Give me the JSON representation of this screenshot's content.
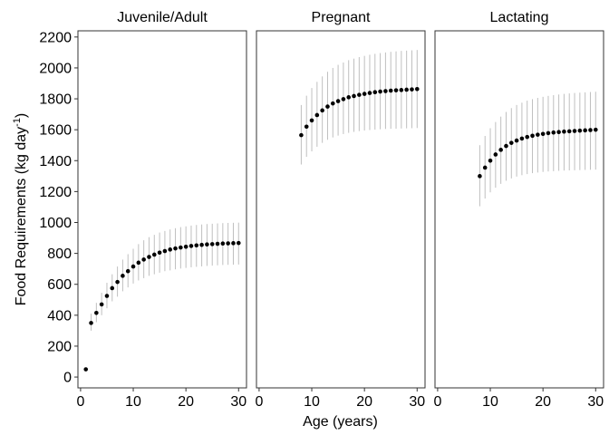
{
  "chart_data": {
    "type": "scatter",
    "xlabel": "Age (years)",
    "ylabel": "Food Requirements (kg day",
    "ylabel_sup": "-1",
    "ylabel_close": ")",
    "ylim": [
      -70,
      2240
    ],
    "xlim": [
      -0.5,
      31.5
    ],
    "y_ticks": [
      0,
      200,
      400,
      600,
      800,
      1000,
      1200,
      1400,
      1600,
      1800,
      2000,
      2200
    ],
    "x_ticks": [
      0,
      10,
      20,
      30
    ],
    "grid": false,
    "colors": {
      "point": "#000000",
      "error_bar": "#bfbfbf",
      "frame": "#333333"
    },
    "panels": [
      {
        "title": "Juvenile/Adult",
        "x": [
          1,
          2,
          3,
          4,
          5,
          6,
          7,
          8,
          9,
          10,
          11,
          12,
          13,
          14,
          15,
          16,
          17,
          18,
          19,
          20,
          21,
          22,
          23,
          24,
          25,
          26,
          27,
          28,
          29,
          30
        ],
        "y": [
          50,
          350,
          415,
          470,
          525,
          575,
          615,
          655,
          685,
          715,
          740,
          760,
          777,
          792,
          805,
          815,
          825,
          832,
          838,
          843,
          848,
          852,
          855,
          858,
          860,
          862,
          864,
          865,
          866,
          867
        ],
        "ymin": [
          50,
          300,
          355,
          400,
          445,
          490,
          520,
          555,
          580,
          605,
          625,
          640,
          655,
          665,
          675,
          685,
          690,
          697,
          702,
          706,
          710,
          713,
          716,
          719,
          721,
          723,
          725,
          726,
          727,
          728
        ],
        "ymax": [
          50,
          410,
          480,
          545,
          610,
          665,
          715,
          760,
          795,
          830,
          860,
          885,
          905,
          920,
          935,
          945,
          955,
          963,
          970,
          975,
          980,
          984,
          987,
          990,
          992,
          994,
          996,
          997,
          998,
          999
        ]
      },
      {
        "title": "Pregnant",
        "x": [
          8,
          9,
          10,
          11,
          12,
          13,
          14,
          15,
          16,
          17,
          18,
          19,
          20,
          21,
          22,
          23,
          24,
          25,
          26,
          27,
          28,
          29,
          30
        ],
        "y": [
          1565,
          1620,
          1660,
          1695,
          1725,
          1750,
          1770,
          1785,
          1798,
          1810,
          1818,
          1826,
          1832,
          1838,
          1843,
          1847,
          1850,
          1853,
          1855,
          1857,
          1859,
          1861,
          1863
        ],
        "ymin": [
          1375,
          1425,
          1460,
          1490,
          1515,
          1535,
          1550,
          1562,
          1572,
          1580,
          1586,
          1591,
          1595,
          1598,
          1601,
          1603,
          1605,
          1606,
          1607,
          1608,
          1609,
          1610,
          1611
        ],
        "ymax": [
          1760,
          1820,
          1870,
          1910,
          1945,
          1975,
          2000,
          2020,
          2035,
          2050,
          2060,
          2070,
          2078,
          2085,
          2091,
          2096,
          2100,
          2104,
          2107,
          2110,
          2112,
          2114,
          2116
        ]
      },
      {
        "title": "Lactating",
        "x": [
          8,
          9,
          10,
          11,
          12,
          13,
          14,
          15,
          16,
          17,
          18,
          19,
          20,
          21,
          22,
          23,
          24,
          25,
          26,
          27,
          28,
          29,
          30
        ],
        "y": [
          1300,
          1355,
          1400,
          1440,
          1470,
          1495,
          1515,
          1530,
          1543,
          1553,
          1561,
          1568,
          1573,
          1578,
          1582,
          1585,
          1588,
          1590,
          1592,
          1594,
          1596,
          1598,
          1600
        ],
        "ymin": [
          1105,
          1155,
          1195,
          1225,
          1250,
          1270,
          1285,
          1297,
          1306,
          1313,
          1319,
          1323,
          1327,
          1330,
          1332,
          1334,
          1336,
          1337,
          1338,
          1339,
          1340,
          1341,
          1342
        ],
        "ymax": [
          1500,
          1560,
          1610,
          1650,
          1685,
          1715,
          1740,
          1760,
          1775,
          1788,
          1798,
          1806,
          1813,
          1819,
          1824,
          1828,
          1832,
          1835,
          1838,
          1840,
          1842,
          1844,
          1846
        ]
      }
    ]
  }
}
